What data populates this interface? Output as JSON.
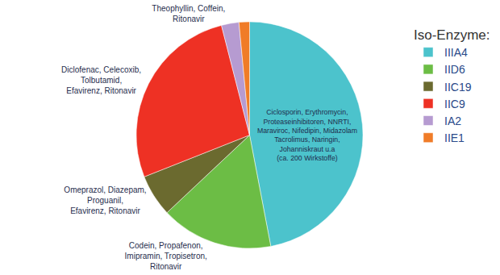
{
  "chart_data": {
    "type": "pie",
    "legend_title": "Iso-Enzyme:",
    "categories": [
      "IIIA4",
      "IID6",
      "IIC19",
      "IIC9",
      "IA2",
      "IIE1"
    ],
    "values": [
      47,
      16,
      6,
      27,
      2.5,
      1.5
    ],
    "colors": [
      "#4cc3cc",
      "#6cbd45",
      "#6b6a2f",
      "#ee3124",
      "#b69bd1",
      "#f07c28"
    ],
    "slice_labels": [
      [
        "Ciclosporin, Erythromycin,",
        "Proteaseinhibitoren, NNRTI,",
        "Maraviroc, Nifedipin, Midazolam",
        "Tacrolimus, Naringin,",
        "Johanniskraut u.a",
        "(ca. 200 Wirkstoffe)"
      ],
      [
        "Codein, Propafenon,",
        "Imipramin, Tropisetron,",
        "Ritonavir"
      ],
      [
        "Omeprazol, Diazepam,",
        "Proguanil,",
        "Efavirenz, Ritonavir"
      ],
      [
        "Diclofenac, Celecoxib,",
        "Tolbutamid,",
        "Efavirenz, Ritonavir"
      ],
      [
        "Theophyllin, Coffein,",
        "Ritonavir"
      ],
      null
    ],
    "legend": "top right",
    "data_labels": false
  }
}
